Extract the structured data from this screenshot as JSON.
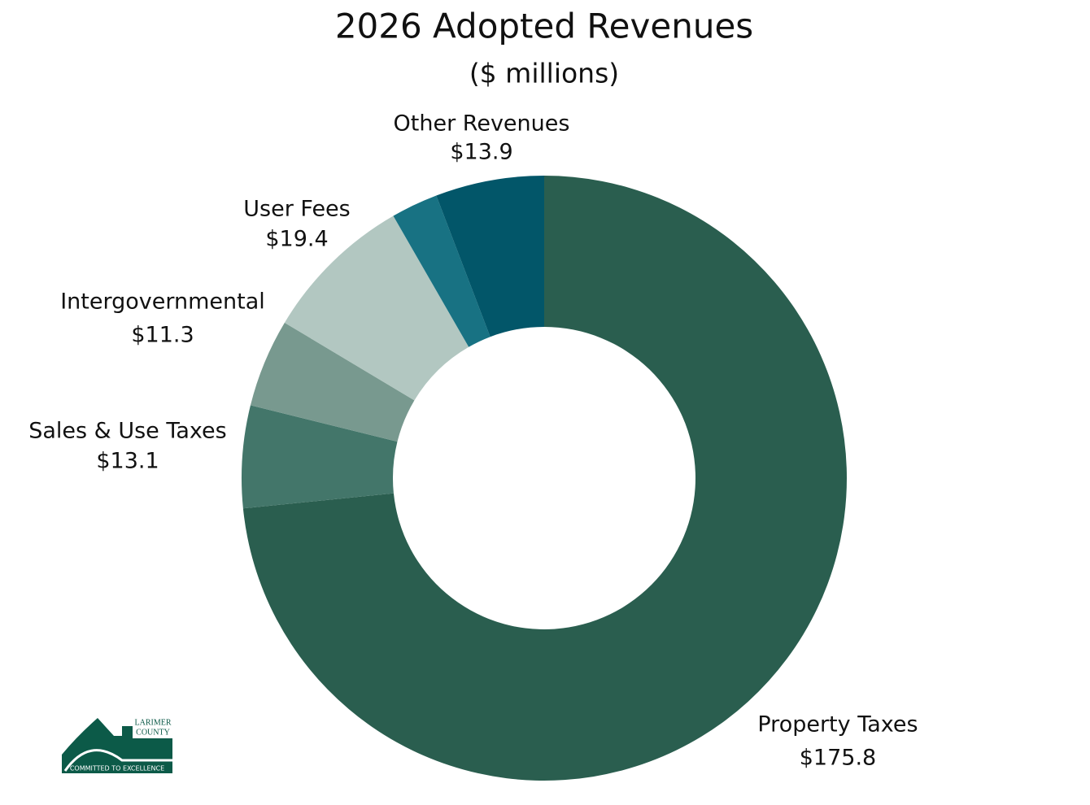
{
  "chart_data": {
    "type": "donut",
    "title": "2026 Adopted Revenues",
    "subtitle": "($ millions)",
    "categories": [
      "Property Taxes",
      "Sales & Use Taxes",
      "Intergovernmental",
      "User Fees",
      null,
      "Other Revenues"
    ],
    "values": [
      175.8,
      13.1,
      11.3,
      19.4,
      6.0,
      13.9
    ],
    "value_labels": [
      "$175.8",
      "$13.1",
      "$11.3",
      "$19.4",
      null,
      "$13.9"
    ],
    "colors": [
      "#2a5e4f",
      "#43766a",
      "#78998f",
      "#b2c7c1",
      "#187283",
      "#025669"
    ]
  },
  "logo": {
    "line1": "LARIMER",
    "line2": "COUNTY",
    "tagline": "COMMITTED TO EXCELLENCE"
  }
}
